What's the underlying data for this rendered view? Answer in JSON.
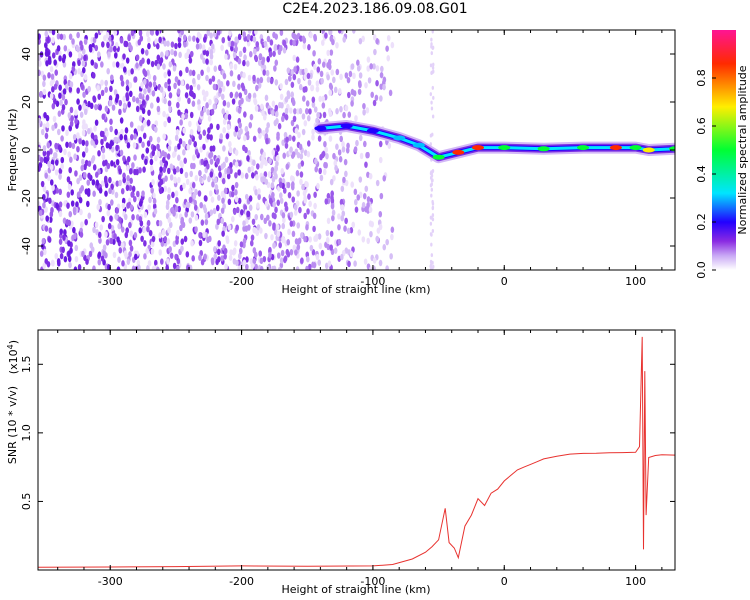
{
  "title": "C2E4.2023.186.09.08.G01",
  "chart_data": [
    {
      "type": "heatmap",
      "xlabel": "Height of straight line (km)",
      "ylabel": "Frequency (Hz)",
      "xlim": [
        -355,
        130
      ],
      "ylim": [
        -50,
        50
      ],
      "x_ticks": [
        -300,
        -200,
        -100,
        0,
        100
      ],
      "x_tick_labels": [
        "-300",
        "-200",
        "-100",
        "0",
        "100"
      ],
      "y_ticks": [
        -40,
        -20,
        0,
        20,
        40
      ],
      "y_tick_labels": [
        "-40",
        "-20",
        "0",
        "20",
        "40"
      ],
      "noise_region_x": [
        -355,
        -85
      ],
      "signal_track": [
        {
          "x": -140,
          "y": 9,
          "amp": 0.25
        },
        {
          "x": -120,
          "y": 10,
          "amp": 0.2
        },
        {
          "x": -100,
          "y": 8,
          "amp": 0.2
        },
        {
          "x": -80,
          "y": 5,
          "amp": 0.35
        },
        {
          "x": -65,
          "y": 2,
          "amp": 0.4
        },
        {
          "x": -50,
          "y": -3,
          "amp": 0.45
        },
        {
          "x": -35,
          "y": -1,
          "amp": 0.8
        },
        {
          "x": -20,
          "y": 1,
          "amp": 0.9
        },
        {
          "x": 0,
          "y": 1,
          "amp": 0.5
        },
        {
          "x": 30,
          "y": 0.5,
          "amp": 0.45
        },
        {
          "x": 60,
          "y": 1,
          "amp": 0.45
        },
        {
          "x": 85,
          "y": 1,
          "amp": 0.85
        },
        {
          "x": 100,
          "y": 1,
          "amp": 0.5
        },
        {
          "x": 110,
          "y": 0,
          "amp": 0.55
        },
        {
          "x": 130,
          "y": 0.5,
          "amp": 0.45
        }
      ],
      "grid": false,
      "colorbar": {
        "label": "Normalized spectral amplitude",
        "range": [
          0,
          1
        ],
        "ticks": [
          0.0,
          0.2,
          0.4,
          0.6,
          0.8
        ],
        "tick_labels": [
          "0.0",
          "0.2",
          "0.4",
          "0.6",
          "0.8"
        ],
        "colors": [
          "#ffffff",
          "#c9a8f5",
          "#8a2be2",
          "#2200ff",
          "#00e5ff",
          "#00ff33",
          "#ffee00",
          "#ff2a00",
          "#ff1493"
        ]
      }
    },
    {
      "type": "line",
      "xlabel": "Height of straight line (km)",
      "ylabel": "SNR (10 * v/v)",
      "y_multiplier_label": "(x10",
      "y_multiplier_exp": "4",
      "xlim": [
        -355,
        130
      ],
      "ylim": [
        0,
        17500
      ],
      "x_ticks": [
        -300,
        -200,
        -100,
        0,
        100
      ],
      "x_tick_labels": [
        "-300",
        "-200",
        "-100",
        "0",
        "100"
      ],
      "y_ticks": [
        5000,
        10000,
        15000
      ],
      "y_tick_labels": [
        "0.5",
        "1.0",
        "1.5"
      ],
      "grid": false,
      "series": [
        {
          "color": "#e8322f",
          "x": [
            -355,
            -300,
            -250,
            -200,
            -150,
            -100,
            -85,
            -70,
            -60,
            -55,
            -50,
            -45,
            -42,
            -38,
            -35,
            -30,
            -25,
            -20,
            -15,
            -10,
            -5,
            0,
            5,
            10,
            15,
            20,
            25,
            30,
            40,
            50,
            60,
            70,
            80,
            90,
            100,
            103,
            105,
            106,
            107,
            108,
            110,
            115,
            120,
            130
          ],
          "y": [
            200,
            220,
            250,
            300,
            280,
            300,
            400,
            800,
            1300,
            1700,
            2200,
            4500,
            2000,
            1600,
            900,
            3200,
            4000,
            5200,
            4700,
            5600,
            5900,
            6500,
            6900,
            7300,
            7500,
            7700,
            7900,
            8100,
            8300,
            8450,
            8500,
            8520,
            8550,
            8560,
            8580,
            9000,
            17000,
            1500,
            14500,
            4000,
            8200,
            8350,
            8400,
            8380
          ]
        }
      ]
    }
  ]
}
